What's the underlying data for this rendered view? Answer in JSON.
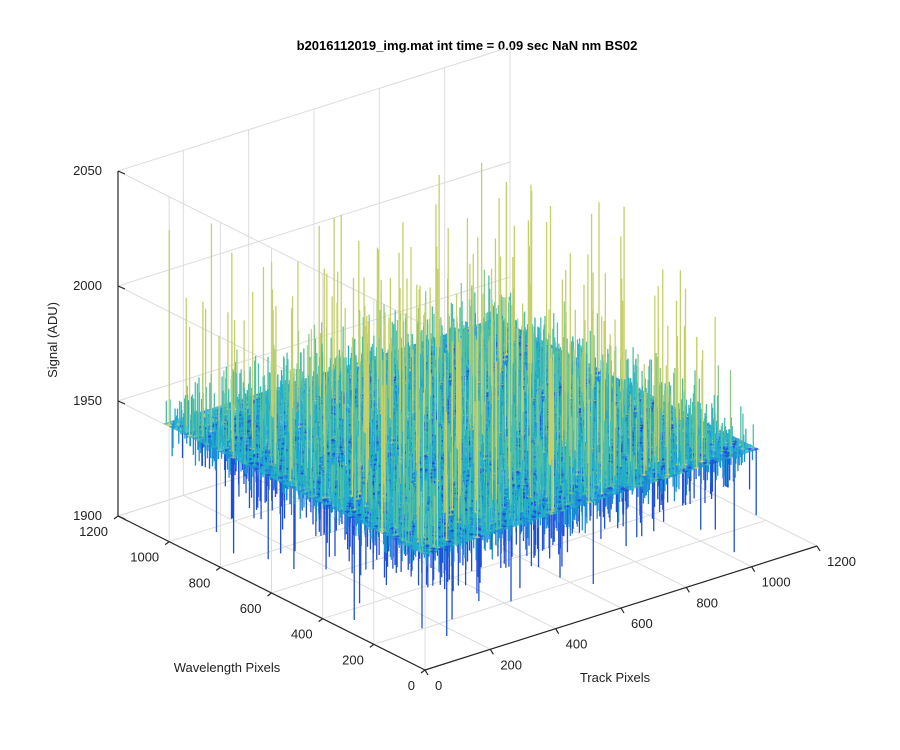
{
  "chart_data": {
    "type": "surface",
    "title": "b2016112019_img.mat int time = 0.09 sec  NaN nm BS02",
    "xlabel": "Track Pixels",
    "ylabel": "Wavelength Pixels",
    "zlabel": "Signal (ADU)",
    "xlim": [
      0,
      1200
    ],
    "ylim": [
      0,
      1200
    ],
    "zlim": [
      1900,
      2050
    ],
    "x_ticks": [
      "0",
      "200",
      "400",
      "600",
      "800",
      "1000",
      "1200"
    ],
    "y_ticks": [
      "0",
      "200",
      "400",
      "600",
      "800",
      "1000",
      "1200"
    ],
    "z_ticks": [
      "1900",
      "1950",
      "2000",
      "2050"
    ],
    "grid": true,
    "surface": {
      "x_range": [
        0,
        1024
      ],
      "y_range": [
        0,
        1024
      ],
      "mean_signal": 1950,
      "noise_std": 10,
      "spike_max": 2035,
      "dip_min": 1903,
      "colormap": [
        "#1f4fd8",
        "#1a8fd6",
        "#23b0c8",
        "#4fbfa8",
        "#8cc98a",
        "#c6d06a"
      ]
    }
  }
}
